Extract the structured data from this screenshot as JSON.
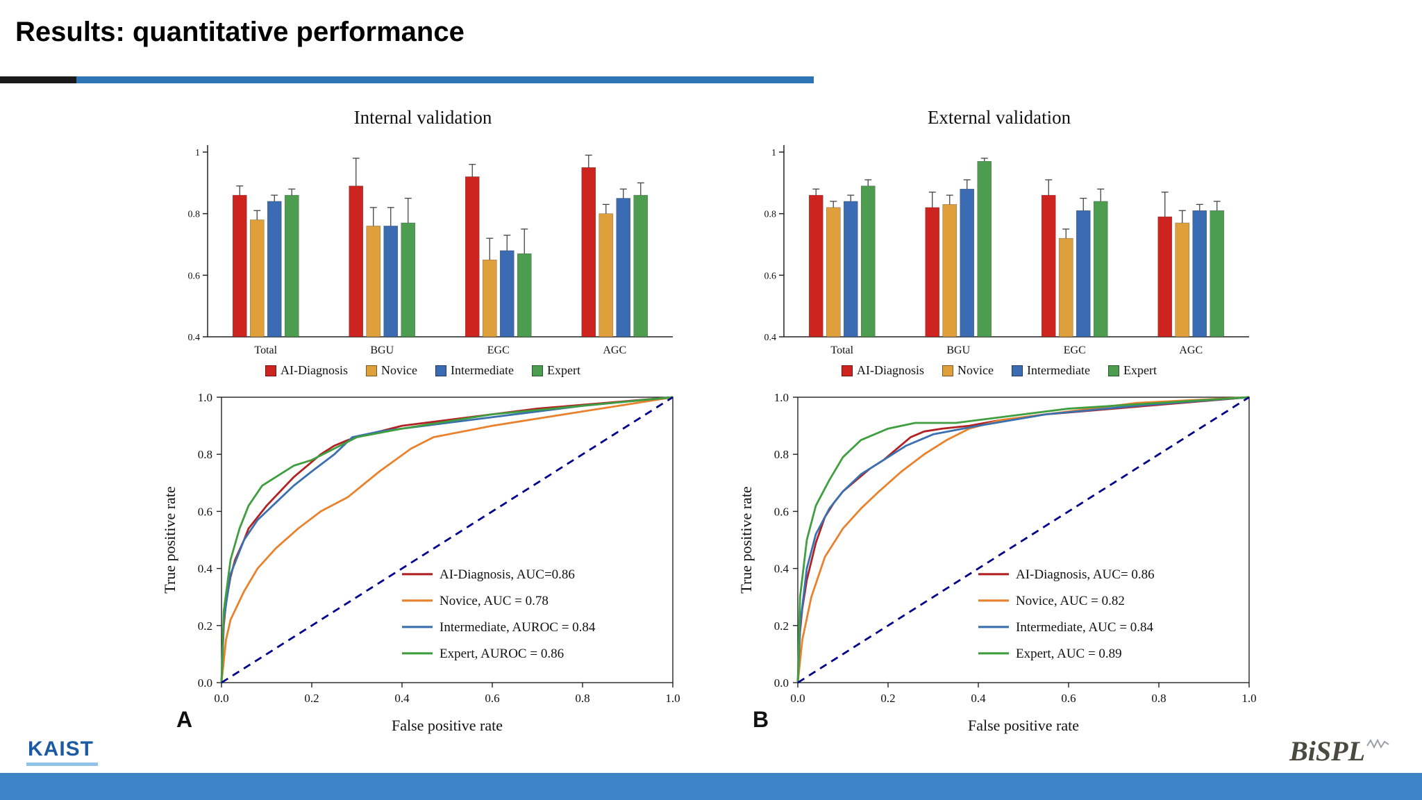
{
  "slide": {
    "title": "Results: quantitative performance",
    "accent_blue": "#2E75B6",
    "footer_bar_color": "#3D85C6"
  },
  "logos": {
    "kaist": "KAIST",
    "bispl": "BiSPL"
  },
  "panels": [
    {
      "letter": "A",
      "title": "Internal validation"
    },
    {
      "letter": "B",
      "title": "External validation"
    }
  ],
  "chart_data": [
    {
      "id": "internal-bar",
      "type": "bar",
      "title": "Internal validation",
      "categories": [
        "Total",
        "BGU",
        "EGC",
        "AGC"
      ],
      "ylim": [
        0.4,
        1.0
      ],
      "yticks": [
        "0.4",
        "0.6",
        "0.8",
        "1"
      ],
      "grid": false,
      "legend_position": "below",
      "series": [
        {
          "name": "AI-Diagnosis",
          "color": "#CE2420",
          "values": [
            0.86,
            0.89,
            0.92,
            0.95
          ],
          "errors": [
            0.03,
            0.09,
            0.04,
            0.04
          ]
        },
        {
          "name": "Novice",
          "color": "#DFA03C",
          "values": [
            0.78,
            0.76,
            0.65,
            0.8
          ],
          "errors": [
            0.03,
            0.06,
            0.07,
            0.03
          ]
        },
        {
          "name": "Intermediate",
          "color": "#3B6BB3",
          "values": [
            0.84,
            0.76,
            0.68,
            0.85
          ],
          "errors": [
            0.02,
            0.06,
            0.05,
            0.03
          ]
        },
        {
          "name": "Expert",
          "color": "#4D9D50",
          "values": [
            0.86,
            0.77,
            0.67,
            0.86
          ],
          "errors": [
            0.02,
            0.08,
            0.08,
            0.04
          ]
        }
      ]
    },
    {
      "id": "external-bar",
      "type": "bar",
      "title": "External validation",
      "categories": [
        "Total",
        "BGU",
        "EGC",
        "AGC"
      ],
      "ylim": [
        0.4,
        1.0
      ],
      "yticks": [
        "0.4",
        "0.6",
        "0.8",
        "1"
      ],
      "grid": false,
      "legend_position": "below",
      "series": [
        {
          "name": "AI-Diagnosis",
          "color": "#CE2420",
          "values": [
            0.86,
            0.82,
            0.86,
            0.79
          ],
          "errors": [
            0.02,
            0.05,
            0.05,
            0.08
          ]
        },
        {
          "name": "Novice",
          "color": "#DFA03C",
          "values": [
            0.82,
            0.83,
            0.72,
            0.77
          ],
          "errors": [
            0.02,
            0.03,
            0.03,
            0.04
          ]
        },
        {
          "name": "Intermediate",
          "color": "#3B6BB3",
          "values": [
            0.84,
            0.88,
            0.81,
            0.81
          ],
          "errors": [
            0.02,
            0.03,
            0.04,
            0.02
          ]
        },
        {
          "name": "Expert",
          "color": "#4D9D50",
          "values": [
            0.89,
            0.97,
            0.84,
            0.81
          ],
          "errors": [
            0.02,
            0.01,
            0.04,
            0.03
          ]
        }
      ]
    },
    {
      "id": "internal-roc",
      "type": "line",
      "xlabel": "False positive rate",
      "ylabel": "True positive rate",
      "xlim": [
        0,
        1
      ],
      "ylim": [
        0,
        1
      ],
      "xticks": [
        "0.0",
        "0.2",
        "0.4",
        "0.6",
        "0.8",
        "1.0"
      ],
      "yticks": [
        "0.0",
        "0.2",
        "0.4",
        "0.6",
        "0.8",
        "1.0"
      ],
      "legend_position": "lower right",
      "series": [
        {
          "name": "AI-Diagnosis, AUC=0.86",
          "color": "#B22222",
          "x": [
            0,
            0.005,
            0.01,
            0.02,
            0.03,
            0.05,
            0.06,
            0.08,
            0.1,
            0.13,
            0.16,
            0.19,
            0.22,
            0.25,
            0.28,
            0.3,
            0.35,
            0.4,
            0.45,
            0.5,
            0.6,
            0.7,
            0.85,
            1.0
          ],
          "y": [
            0,
            0.2,
            0.28,
            0.37,
            0.43,
            0.5,
            0.54,
            0.58,
            0.62,
            0.67,
            0.72,
            0.76,
            0.8,
            0.83,
            0.85,
            0.86,
            0.88,
            0.9,
            0.91,
            0.92,
            0.94,
            0.96,
            0.98,
            1.0
          ]
        },
        {
          "name": "Novice, AUC = 0.78",
          "color": "#E8822C",
          "x": [
            0,
            0.01,
            0.02,
            0.05,
            0.08,
            0.12,
            0.17,
            0.22,
            0.28,
            0.35,
            0.42,
            0.47,
            0.6,
            0.8,
            1.0
          ],
          "y": [
            0,
            0.15,
            0.22,
            0.32,
            0.4,
            0.47,
            0.54,
            0.6,
            0.65,
            0.74,
            0.82,
            0.86,
            0.9,
            0.95,
            1.0
          ]
        },
        {
          "name": "Intermediate, AUROC = 0.84",
          "color": "#3A6FB0",
          "x": [
            0,
            0.005,
            0.02,
            0.05,
            0.08,
            0.12,
            0.16,
            0.2,
            0.25,
            0.29,
            0.35,
            0.45,
            0.6,
            0.8,
            1.0
          ],
          "y": [
            0,
            0.22,
            0.38,
            0.5,
            0.57,
            0.63,
            0.69,
            0.74,
            0.8,
            0.86,
            0.88,
            0.9,
            0.93,
            0.97,
            1.0
          ]
        },
        {
          "name": "Expert, AUROC = 0.86",
          "color": "#3F9E3F",
          "x": [
            0,
            0.005,
            0.02,
            0.04,
            0.06,
            0.09,
            0.12,
            0.16,
            0.2,
            0.3,
            0.4,
            0.6,
            0.8,
            1.0
          ],
          "y": [
            0,
            0.25,
            0.43,
            0.54,
            0.62,
            0.69,
            0.72,
            0.76,
            0.78,
            0.86,
            0.89,
            0.94,
            0.97,
            1.0
          ]
        },
        {
          "name": "reference-diagonal",
          "color": "#00008B",
          "dashed": true,
          "show_in_legend": false,
          "x": [
            0,
            1
          ],
          "y": [
            0,
            1
          ]
        }
      ]
    },
    {
      "id": "external-roc",
      "type": "line",
      "xlabel": "False positive rate",
      "ylabel": "True positive rate",
      "xlim": [
        0,
        1
      ],
      "ylim": [
        0,
        1
      ],
      "xticks": [
        "0.0",
        "0.2",
        "0.4",
        "0.6",
        "0.8",
        "1.0"
      ],
      "yticks": [
        "0.0",
        "0.2",
        "0.4",
        "0.6",
        "0.8",
        "1.0"
      ],
      "legend_position": "lower right",
      "series": [
        {
          "name": "AI-Diagnosis, AUC= 0.86",
          "color": "#B22222",
          "x": [
            0,
            0.005,
            0.01,
            0.02,
            0.04,
            0.06,
            0.08,
            0.1,
            0.13,
            0.16,
            0.19,
            0.22,
            0.25,
            0.28,
            0.32,
            0.38,
            0.45,
            0.55,
            0.7,
            0.85,
            1.0
          ],
          "y": [
            0,
            0.18,
            0.26,
            0.36,
            0.49,
            0.58,
            0.63,
            0.67,
            0.71,
            0.75,
            0.78,
            0.82,
            0.86,
            0.88,
            0.89,
            0.9,
            0.92,
            0.94,
            0.96,
            0.98,
            1.0
          ]
        },
        {
          "name": "Novice, AUC = 0.82",
          "color": "#E8822C",
          "x": [
            0,
            0.01,
            0.03,
            0.06,
            0.1,
            0.14,
            0.18,
            0.23,
            0.28,
            0.33,
            0.38,
            0.45,
            0.55,
            0.75,
            1.0
          ],
          "y": [
            0,
            0.15,
            0.3,
            0.44,
            0.54,
            0.61,
            0.67,
            0.74,
            0.8,
            0.85,
            0.89,
            0.92,
            0.94,
            0.98,
            1.0
          ]
        },
        {
          "name": "Intermediate, AUC = 0.84",
          "color": "#3A6FB0",
          "x": [
            0,
            0.005,
            0.02,
            0.04,
            0.07,
            0.1,
            0.14,
            0.19,
            0.24,
            0.3,
            0.4,
            0.55,
            0.75,
            1.0
          ],
          "y": [
            0,
            0.2,
            0.4,
            0.52,
            0.61,
            0.67,
            0.73,
            0.78,
            0.83,
            0.87,
            0.9,
            0.94,
            0.97,
            1.0
          ]
        },
        {
          "name": "Expert, AUC = 0.89",
          "color": "#3F9E3F",
          "x": [
            0,
            0.005,
            0.02,
            0.04,
            0.07,
            0.1,
            0.14,
            0.2,
            0.26,
            0.35,
            0.45,
            0.6,
            0.8,
            1.0
          ],
          "y": [
            0,
            0.3,
            0.5,
            0.62,
            0.71,
            0.79,
            0.85,
            0.89,
            0.91,
            0.91,
            0.93,
            0.96,
            0.98,
            1.0
          ]
        },
        {
          "name": "reference-diagonal",
          "color": "#00008B",
          "dashed": true,
          "show_in_legend": false,
          "x": [
            0,
            1
          ],
          "y": [
            0,
            1
          ]
        }
      ]
    }
  ]
}
